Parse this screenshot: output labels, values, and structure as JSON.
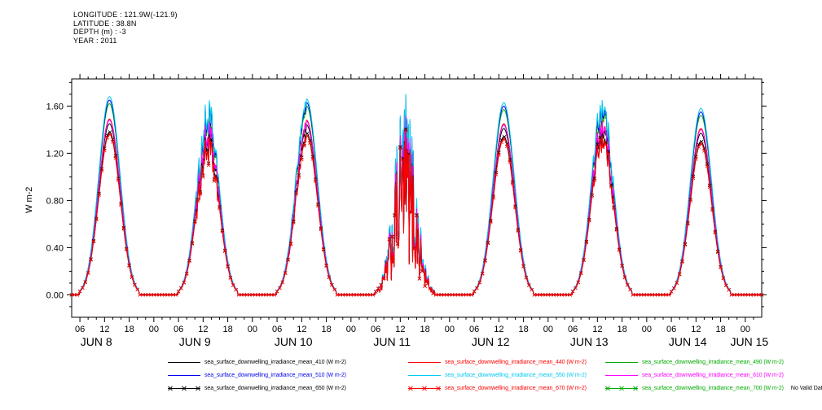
{
  "header": {
    "line1": "LONGITUDE : 121.9W(-121.9)",
    "line2": "LATITUDE : 38.8N",
    "line3": "DEPTH (m) : -3",
    "line4": "YEAR : 2011"
  },
  "chart_data": {
    "type": "line",
    "title": "",
    "xlabel": "",
    "ylabel": "W m-2",
    "year": "2011",
    "ylim": [
      -0.19,
      1.83
    ],
    "y_ticks": [
      0.0,
      0.4,
      0.8,
      1.2,
      1.6
    ],
    "y_tick_labels": [
      "0.00",
      "0.40",
      "0.80",
      "1.20",
      "1.60"
    ],
    "y_minor_step": 0.1,
    "x_domain_hours": [
      4,
      172
    ],
    "x_hour_tick_interval": 6,
    "x_minor_tick_interval": 2,
    "x_tick_labels_cycle": [
      "00",
      "06",
      "12",
      "18"
    ],
    "day_labels": [
      "JUN 8",
      "JUN 9",
      "JUN 10",
      "JUN 11",
      "JUN 12",
      "JUN 13",
      "JUN 14",
      "JUN 15"
    ],
    "n_days": 7,
    "grid": false,
    "legend_position": "bottom",
    "diurnal_shape": {
      "peak_hour": 13.2,
      "sigma_hours": 2.6,
      "zero_threshold": 0.02,
      "night_value": 0.0
    },
    "cloud_noise": [
      {
        "day": 1,
        "min": 0.82,
        "max": 1.04,
        "hours": [
          10.5,
          15.5
        ]
      },
      {
        "day": 2,
        "min": 0.93,
        "max": 1.02,
        "hours": [
          9.0,
          13.0
        ]
      },
      {
        "day": 3,
        "min": 0.2,
        "max": 1.14,
        "hours": [
          6.5,
          20.0
        ]
      },
      {
        "day": 5,
        "min": 0.9,
        "max": 1.05,
        "hours": [
          11.0,
          16.0
        ]
      }
    ],
    "series": [
      {
        "name": "410",
        "label": "sea_surface_downwelling_irradiance_mean_410 (W m-2)",
        "color": "#000000",
        "marker": "none",
        "no_data": false,
        "daily_peaks": [
          1.45,
          1.4,
          1.44,
          1.34,
          1.41,
          1.43,
          1.37
        ]
      },
      {
        "name": "440",
        "label": "sea_surface_downwelling_irradiance_mean_440 (W m-2)",
        "color": "#ff0000",
        "marker": "none",
        "no_data": false,
        "daily_peaks": [
          1.49,
          1.44,
          1.48,
          1.38,
          1.45,
          1.47,
          1.41
        ]
      },
      {
        "name": "490",
        "label": "sea_surface_downwelling_irradiance_mean_490 (W m-2)",
        "color": "#00aa00",
        "marker": "none",
        "no_data": false,
        "daily_peaks": [
          1.62,
          1.55,
          1.6,
          1.49,
          1.57,
          1.58,
          1.52
        ]
      },
      {
        "name": "510",
        "label": "sea_surface_downwelling_irradiance_mean_510 (W m-2)",
        "color": "#0000ee",
        "marker": "none",
        "no_data": false,
        "daily_peaks": [
          1.65,
          1.58,
          1.63,
          1.52,
          1.6,
          1.61,
          1.55
        ]
      },
      {
        "name": "550",
        "label": "sea_surface_downwelling_irradiance_mean_550 (W m-2)",
        "color": "#00c8f0",
        "marker": "none",
        "no_data": false,
        "daily_peaks": [
          1.68,
          1.61,
          1.66,
          1.54,
          1.63,
          1.64,
          1.58
        ]
      },
      {
        "name": "610",
        "label": "sea_surface_downwelling_irradiance_mean_610 (W m-2)",
        "color": "#ff00ff",
        "marker": "none",
        "no_data": false,
        "daily_peaks": [
          1.48,
          1.43,
          1.47,
          1.37,
          1.44,
          1.46,
          1.4
        ]
      },
      {
        "name": "650",
        "label": "sea_surface_downwelling_irradiance_mean_650 (W m-2)",
        "color": "#000000",
        "marker": "x",
        "no_data": false,
        "daily_peaks": [
          1.38,
          1.33,
          1.37,
          1.27,
          1.34,
          1.36,
          1.3
        ]
      },
      {
        "name": "670",
        "label": "sea_surface_downwelling_irradiance_mean_670 (W m-2)",
        "color": "#ff0000",
        "marker": "x",
        "no_data": false,
        "daily_peaks": [
          1.36,
          1.31,
          1.35,
          1.26,
          1.32,
          1.34,
          1.28
        ]
      },
      {
        "name": "700",
        "label": "sea_surface_downwelling_irradiance_mean_700 (W m-2)",
        "color": "#00aa00",
        "marker": "x",
        "no_data": true,
        "note": "No Valid Data",
        "daily_peaks": [
          0,
          0,
          0,
          0,
          0,
          0,
          0
        ]
      }
    ]
  }
}
